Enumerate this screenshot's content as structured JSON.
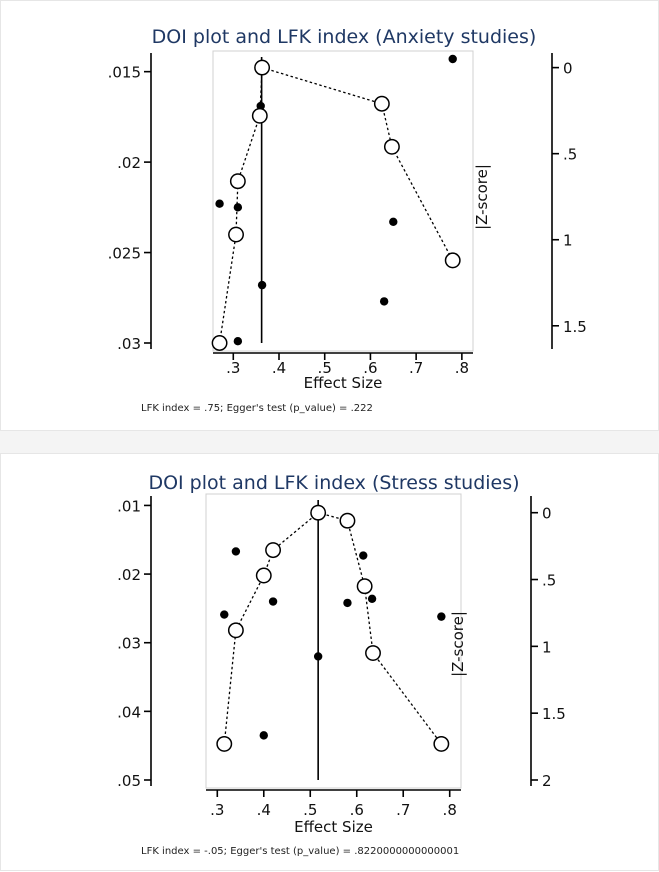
{
  "colors": {
    "title": "#1f3864",
    "ink": "#000000",
    "open_marker_fill": "#ffffff"
  },
  "chart_data": [
    {
      "type": "scatter",
      "title": "DOI plot and LFK index (Anxiety studies)",
      "xlabel": "Effect Size",
      "y2label": "|Z-score|",
      "xlim": [
        0.26,
        0.82
      ],
      "ylim": [
        0.03,
        0.0143
      ],
      "y2lim": [
        1.6,
        -0.05
      ],
      "x_ticks": [
        0.3,
        0.4,
        0.5,
        0.6,
        0.7,
        0.8
      ],
      "x_tick_labels": [
        ".3",
        ".4",
        ".5",
        ".6",
        ".7",
        ".8"
      ],
      "y_ticks": [
        0.015,
        0.02,
        0.025,
        0.03
      ],
      "y_tick_labels": [
        ".015",
        ".02",
        ".025",
        ".03"
      ],
      "y2_ticks": [
        0,
        0.5,
        1,
        1.5
      ],
      "y2_tick_labels": [
        "0",
        ".5",
        "1",
        "1.5"
      ],
      "funnel_line_x": 0.362,
      "grid": false,
      "note": "LFK index = .75; Egger's test (p_value) = .222",
      "funnel_points": [
        {
          "x": 0.27,
          "y": 0.0223
        },
        {
          "x": 0.31,
          "y": 0.0225
        },
        {
          "x": 0.36,
          "y": 0.0169
        },
        {
          "x": 0.65,
          "y": 0.0233
        },
        {
          "x": 0.78,
          "y": 0.0143
        },
        {
          "x": 0.363,
          "y": 0.0268
        },
        {
          "x": 0.31,
          "y": 0.0299
        },
        {
          "x": 0.63,
          "y": 0.0277
        }
      ],
      "doi_points": [
        {
          "x": 0.27,
          "z": 1.6
        },
        {
          "x": 0.306,
          "z": 0.97
        },
        {
          "x": 0.31,
          "z": 0.66
        },
        {
          "x": 0.358,
          "z": 0.28
        },
        {
          "x": 0.363,
          "z": 0.0
        },
        {
          "x": 0.625,
          "z": 0.21
        },
        {
          "x": 0.647,
          "z": 0.46
        },
        {
          "x": 0.78,
          "z": 1.12
        }
      ]
    },
    {
      "type": "scatter",
      "title": "DOI plot and LFK index (Stress studies)",
      "xlabel": "Effect Size",
      "y2label": "|Z-score|",
      "xlim": [
        0.28,
        0.82
      ],
      "ylim": [
        0.05,
        0.0095
      ],
      "y2lim": [
        2,
        -0.08
      ],
      "x_ticks": [
        0.3,
        0.4,
        0.5,
        0.6,
        0.7,
        0.8
      ],
      "x_tick_labels": [
        ".3",
        ".4",
        ".5",
        ".6",
        ".7",
        ".8"
      ],
      "y_ticks": [
        0.01,
        0.02,
        0.03,
        0.04,
        0.05
      ],
      "y_tick_labels": [
        ".01",
        ".02",
        ".03",
        ".04",
        ".05"
      ],
      "y2_ticks": [
        0,
        0.5,
        1,
        1.5,
        2
      ],
      "y2_tick_labels": [
        "0",
        ".5",
        "1",
        "1.5",
        "2"
      ],
      "funnel_line_x": 0.517,
      "grid": false,
      "note": "LFK index = -.05; Egger's test (p_value) = .8220000000000001",
      "funnel_points": [
        {
          "x": 0.34,
          "y": 0.0167
        },
        {
          "x": 0.315,
          "y": 0.0259
        },
        {
          "x": 0.42,
          "y": 0.024
        },
        {
          "x": 0.517,
          "y": 0.032
        },
        {
          "x": 0.4,
          "y": 0.0435
        },
        {
          "x": 0.58,
          "y": 0.0242
        },
        {
          "x": 0.614,
          "y": 0.0173
        },
        {
          "x": 0.633,
          "y": 0.0236
        },
        {
          "x": 0.782,
          "y": 0.0262
        }
      ],
      "doi_points": [
        {
          "x": 0.315,
          "z": 1.73
        },
        {
          "x": 0.34,
          "z": 0.88
        },
        {
          "x": 0.4,
          "z": 0.47
        },
        {
          "x": 0.42,
          "z": 0.28
        },
        {
          "x": 0.517,
          "z": 0.0
        },
        {
          "x": 0.58,
          "z": 0.06
        },
        {
          "x": 0.617,
          "z": 0.55
        },
        {
          "x": 0.635,
          "z": 1.05
        },
        {
          "x": 0.782,
          "z": 1.73
        }
      ]
    }
  ]
}
